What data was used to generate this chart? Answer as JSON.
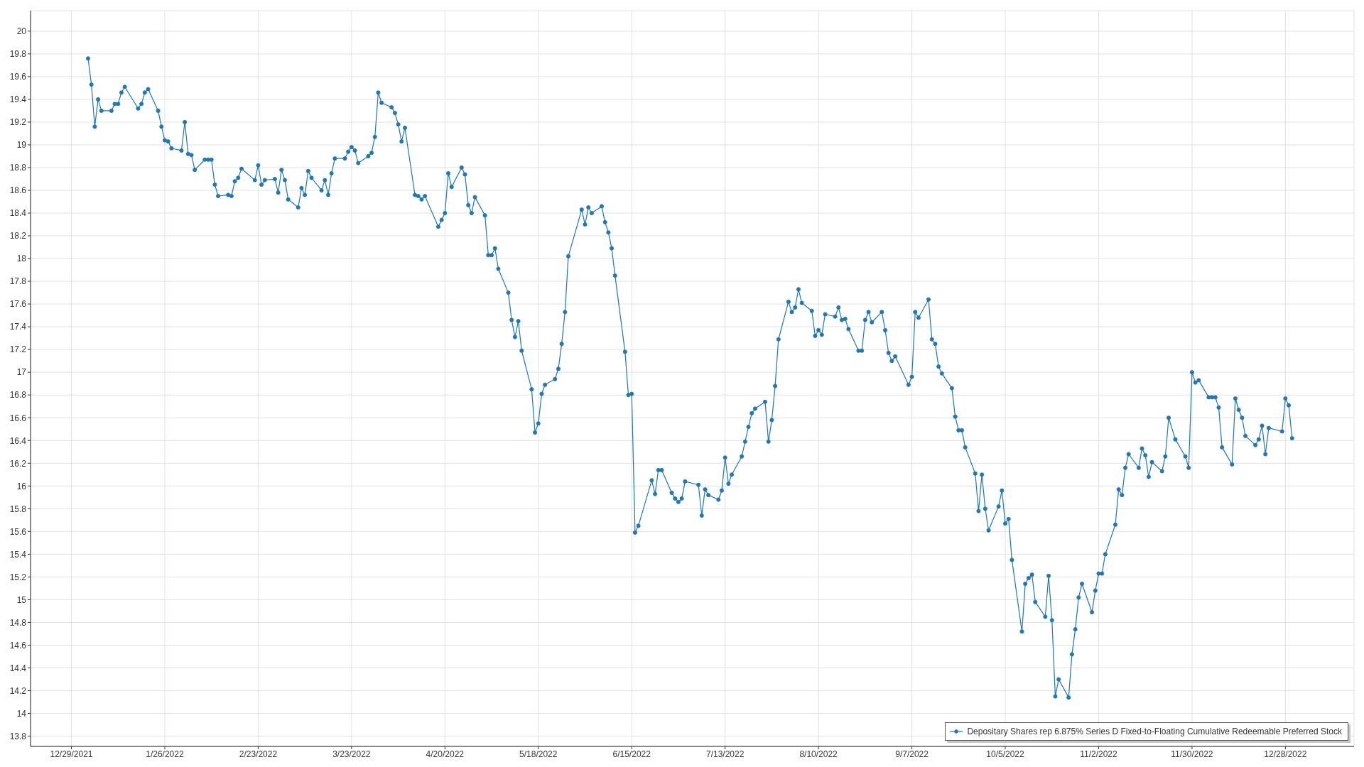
{
  "chart_data": {
    "type": "line",
    "x": [
      "2022-01-03",
      "2022-01-04",
      "2022-01-05",
      "2022-01-06",
      "2022-01-07",
      "2022-01-10",
      "2022-01-11",
      "2022-01-12",
      "2022-01-13",
      "2022-01-14",
      "2022-01-18",
      "2022-01-19",
      "2022-01-20",
      "2022-01-21",
      "2022-01-24",
      "2022-01-25",
      "2022-01-26",
      "2022-01-27",
      "2022-01-28",
      "2022-01-31",
      "2022-02-01",
      "2022-02-02",
      "2022-02-03",
      "2022-02-04",
      "2022-02-07",
      "2022-02-08",
      "2022-02-09",
      "2022-02-10",
      "2022-02-11",
      "2022-02-14",
      "2022-02-15",
      "2022-02-16",
      "2022-02-17",
      "2022-02-18",
      "2022-02-22",
      "2022-02-23",
      "2022-02-24",
      "2022-02-25",
      "2022-02-28",
      "2022-03-01",
      "2022-03-02",
      "2022-03-03",
      "2022-03-04",
      "2022-03-07",
      "2022-03-08",
      "2022-03-09",
      "2022-03-10",
      "2022-03-11",
      "2022-03-14",
      "2022-03-15",
      "2022-03-16",
      "2022-03-17",
      "2022-03-18",
      "2022-03-21",
      "2022-03-22",
      "2022-03-23",
      "2022-03-24",
      "2022-03-25",
      "2022-03-28",
      "2022-03-29",
      "2022-03-30",
      "2022-03-31",
      "2022-04-01",
      "2022-04-04",
      "2022-04-05",
      "2022-04-06",
      "2022-04-07",
      "2022-04-08",
      "2022-04-11",
      "2022-04-12",
      "2022-04-13",
      "2022-04-14",
      "2022-04-18",
      "2022-04-19",
      "2022-04-20",
      "2022-04-21",
      "2022-04-22",
      "2022-04-25",
      "2022-04-26",
      "2022-04-27",
      "2022-04-28",
      "2022-04-29",
      "2022-05-02",
      "2022-05-03",
      "2022-05-04",
      "2022-05-05",
      "2022-05-06",
      "2022-05-09",
      "2022-05-10",
      "2022-05-11",
      "2022-05-12",
      "2022-05-13",
      "2022-05-16",
      "2022-05-17",
      "2022-05-18",
      "2022-05-19",
      "2022-05-20",
      "2022-05-23",
      "2022-05-24",
      "2022-05-25",
      "2022-05-26",
      "2022-05-27",
      "2022-05-31",
      "2022-06-01",
      "2022-06-02",
      "2022-06-03",
      "2022-06-06",
      "2022-06-07",
      "2022-06-08",
      "2022-06-09",
      "2022-06-10",
      "2022-06-13",
      "2022-06-14",
      "2022-06-15",
      "2022-06-16",
      "2022-06-17",
      "2022-06-21",
      "2022-06-22",
      "2022-06-23",
      "2022-06-24",
      "2022-06-27",
      "2022-06-28",
      "2022-06-29",
      "2022-06-30",
      "2022-07-01",
      "2022-07-05",
      "2022-07-06",
      "2022-07-07",
      "2022-07-08",
      "2022-07-11",
      "2022-07-12",
      "2022-07-13",
      "2022-07-14",
      "2022-07-15",
      "2022-07-18",
      "2022-07-19",
      "2022-07-20",
      "2022-07-21",
      "2022-07-22",
      "2022-07-25",
      "2022-07-26",
      "2022-07-27",
      "2022-07-28",
      "2022-07-29",
      "2022-08-01",
      "2022-08-02",
      "2022-08-03",
      "2022-08-04",
      "2022-08-05",
      "2022-08-08",
      "2022-08-09",
      "2022-08-10",
      "2022-08-11",
      "2022-08-12",
      "2022-08-15",
      "2022-08-16",
      "2022-08-17",
      "2022-08-18",
      "2022-08-19",
      "2022-08-22",
      "2022-08-23",
      "2022-08-24",
      "2022-08-25",
      "2022-08-26",
      "2022-08-29",
      "2022-08-30",
      "2022-08-31",
      "2022-09-01",
      "2022-09-02",
      "2022-09-06",
      "2022-09-07",
      "2022-09-08",
      "2022-09-09",
      "2022-09-12",
      "2022-09-13",
      "2022-09-14",
      "2022-09-15",
      "2022-09-16",
      "2022-09-19",
      "2022-09-20",
      "2022-09-21",
      "2022-09-22",
      "2022-09-23",
      "2022-09-26",
      "2022-09-27",
      "2022-09-28",
      "2022-09-29",
      "2022-09-30",
      "2022-10-03",
      "2022-10-04",
      "2022-10-05",
      "2022-10-06",
      "2022-10-07",
      "2022-10-10",
      "2022-10-11",
      "2022-10-12",
      "2022-10-13",
      "2022-10-14",
      "2022-10-17",
      "2022-10-18",
      "2022-10-19",
      "2022-10-20",
      "2022-10-21",
      "2022-10-24",
      "2022-10-25",
      "2022-10-26",
      "2022-10-27",
      "2022-10-28",
      "2022-10-31",
      "2022-11-01",
      "2022-11-02",
      "2022-11-03",
      "2022-11-04",
      "2022-11-07",
      "2022-11-08",
      "2022-11-09",
      "2022-11-10",
      "2022-11-11",
      "2022-11-14",
      "2022-11-15",
      "2022-11-16",
      "2022-11-17",
      "2022-11-18",
      "2022-11-21",
      "2022-11-22",
      "2022-11-23",
      "2022-11-25",
      "2022-11-28",
      "2022-11-29",
      "2022-11-30",
      "2022-12-01",
      "2022-12-02",
      "2022-12-05",
      "2022-12-06",
      "2022-12-07",
      "2022-12-08",
      "2022-12-09",
      "2022-12-12",
      "2022-12-13",
      "2022-12-14",
      "2022-12-15",
      "2022-12-16",
      "2022-12-19",
      "2022-12-20",
      "2022-12-21",
      "2022-12-22",
      "2022-12-23",
      "2022-12-27",
      "2022-12-28",
      "2022-12-29",
      "2022-12-30"
    ],
    "series": [
      {
        "name": "Depositary Shares rep 6.875% Series D Fixed-to-Floating Cumulative Redeemable Preferred Stock",
        "color": "#1f77b4",
        "values": [
          19.76,
          19.53,
          19.16,
          19.4,
          19.3,
          19.3,
          19.36,
          19.36,
          19.46,
          19.51,
          19.32,
          19.36,
          19.46,
          19.49,
          19.3,
          19.16,
          19.04,
          19.03,
          18.97,
          18.95,
          19.2,
          18.92,
          18.91,
          18.78,
          18.87,
          18.87,
          18.87,
          18.65,
          18.55,
          18.56,
          18.55,
          18.68,
          18.71,
          18.79,
          18.69,
          18.82,
          18.65,
          18.69,
          18.7,
          18.58,
          18.78,
          18.69,
          18.52,
          18.45,
          18.62,
          18.56,
          18.77,
          18.71,
          18.6,
          18.69,
          18.56,
          18.75,
          18.88,
          18.88,
          18.94,
          18.98,
          18.95,
          18.84,
          18.9,
          18.93,
          19.07,
          19.46,
          19.37,
          19.33,
          19.28,
          19.18,
          19.03,
          19.15,
          18.56,
          18.55,
          18.52,
          18.55,
          18.28,
          18.34,
          18.4,
          18.75,
          18.63,
          18.8,
          18.74,
          18.47,
          18.4,
          18.54,
          18.38,
          18.03,
          18.03,
          18.09,
          17.91,
          17.7,
          17.46,
          17.31,
          17.45,
          17.19,
          16.85,
          16.47,
          16.55,
          16.81,
          16.89,
          16.94,
          17.03,
          17.25,
          17.53,
          18.02,
          18.43,
          18.3,
          18.45,
          18.4,
          18.46,
          18.32,
          18.23,
          18.09,
          17.85,
          17.18,
          16.8,
          16.81,
          15.59,
          15.65,
          16.05,
          15.93,
          16.14,
          16.14,
          15.94,
          15.89,
          15.86,
          15.89,
          16.04,
          16.01,
          15.74,
          15.97,
          15.92,
          15.88,
          15.96,
          16.25,
          16.02,
          16.1,
          16.26,
          16.39,
          16.52,
          16.64,
          16.68,
          16.74,
          16.39,
          16.58,
          16.88,
          17.29,
          17.62,
          17.53,
          17.57,
          17.73,
          17.61,
          17.54,
          17.32,
          17.37,
          17.33,
          17.51,
          17.49,
          17.57,
          17.46,
          17.47,
          17.38,
          17.19,
          17.19,
          17.46,
          17.53,
          17.44,
          17.53,
          17.37,
          17.17,
          17.1,
          17.14,
          16.89,
          16.96,
          17.53,
          17.48,
          17.64,
          17.29,
          17.25,
          17.05,
          16.99,
          16.86,
          16.61,
          16.49,
          16.49,
          16.34,
          16.11,
          15.78,
          16.1,
          15.8,
          15.61,
          15.82,
          15.96,
          15.67,
          15.71,
          15.35,
          14.72,
          15.14,
          15.19,
          15.22,
          14.98,
          14.85,
          15.21,
          14.82,
          14.15,
          14.3,
          14.14,
          14.52,
          14.74,
          15.02,
          15.14,
          14.89,
          15.08,
          15.23,
          15.23,
          15.4,
          15.66,
          15.97,
          15.92,
          16.16,
          16.28,
          16.16,
          16.33,
          16.27,
          16.08,
          16.21,
          16.13,
          16.26,
          16.6,
          16.41,
          16.26,
          16.16,
          17.0,
          16.91,
          16.93,
          16.78,
          16.78,
          16.78,
          16.69,
          16.34,
          16.19,
          16.77,
          16.67,
          16.6,
          16.44,
          16.36,
          16.41,
          16.53,
          16.28,
          16.51,
          16.48,
          16.77,
          16.71,
          16.42
        ]
      }
    ],
    "xlim": [
      "2021-12-16T18:00",
      "2023-01-17T14:00"
    ],
    "xticks": [
      {
        "value": "2021-12-29",
        "label": "12/29/2021"
      },
      {
        "value": "2022-01-26",
        "label": "1/26/2022"
      },
      {
        "value": "2022-02-23",
        "label": "2/23/2022"
      },
      {
        "value": "2022-03-23",
        "label": "3/23/2022"
      },
      {
        "value": "2022-04-20",
        "label": "4/20/2022"
      },
      {
        "value": "2022-05-18",
        "label": "5/18/2022"
      },
      {
        "value": "2022-06-15",
        "label": "6/15/2022"
      },
      {
        "value": "2022-07-13",
        "label": "7/13/2022"
      },
      {
        "value": "2022-08-10",
        "label": "8/10/2022"
      },
      {
        "value": "2022-09-07",
        "label": "9/7/2022"
      },
      {
        "value": "2022-10-05",
        "label": "10/5/2022"
      },
      {
        "value": "2022-11-02",
        "label": "11/2/2022"
      },
      {
        "value": "2022-11-30",
        "label": "11/30/2022"
      },
      {
        "value": "2022-12-28",
        "label": "12/28/2022"
      }
    ],
    "ylim": [
      13.71,
      20.18
    ],
    "yticks": [
      13.8,
      14,
      14.2,
      14.4,
      14.6,
      14.8,
      15,
      15.2,
      15.4,
      15.6,
      15.8,
      16,
      16.2,
      16.4,
      16.6,
      16.8,
      17,
      17.2,
      17.4,
      17.6,
      17.8,
      18,
      18.2,
      18.4,
      18.6,
      18.8,
      19,
      19.2,
      19.4,
      19.6,
      19.8,
      20
    ],
    "grid": true,
    "legend": "bottom right",
    "marker": "circle",
    "line_style": "solid"
  }
}
